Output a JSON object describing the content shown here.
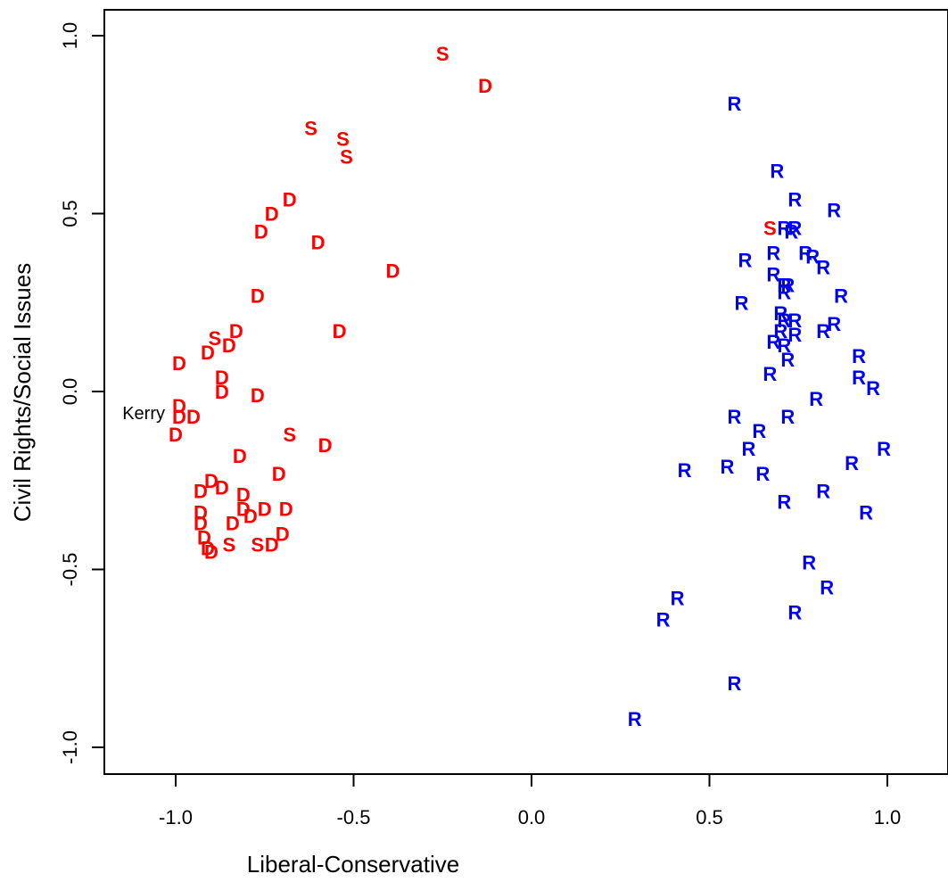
{
  "chart_data": {
    "type": "scatter",
    "title": "",
    "xlabel": "Liberal-Conservative",
    "ylabel": "Civil Rights/Social Issues",
    "xlim": [
      -1.2,
      1.17
    ],
    "ylim": [
      -1.08,
      1.08
    ],
    "x_ticks": [
      -1.0,
      -0.5,
      0.0,
      0.5,
      1.0
    ],
    "x_tick_labels": [
      "-1.0",
      "-0.5",
      "0.0",
      "0.5",
      "1.0"
    ],
    "y_ticks": [
      -1.0,
      -0.5,
      0.0,
      0.5,
      1.0
    ],
    "y_tick_labels": [
      "-1.0",
      "-0.5",
      "0.0",
      "0.5",
      "1.0"
    ],
    "grid": false,
    "legend": "none",
    "colors": {
      "D": "#ff0000",
      "S": "#ff0000",
      "R": "#0000ff"
    },
    "annotations": [
      {
        "text": "Kerry",
        "x": -1.0,
        "y": -0.06
      }
    ],
    "series": [
      {
        "symbol": "S",
        "color": "#ff0000",
        "points": [
          [
            -0.25,
            0.95
          ],
          [
            -0.62,
            0.74
          ],
          [
            -0.53,
            0.71
          ],
          [
            -0.52,
            0.66
          ],
          [
            -0.68,
            -0.12
          ],
          [
            -0.89,
            0.15
          ],
          [
            -0.77,
            -0.43
          ],
          [
            -0.85,
            -0.43
          ],
          [
            0.67,
            0.46
          ]
        ]
      },
      {
        "symbol": "D",
        "color": "#ff0000",
        "points": [
          [
            -0.13,
            0.86
          ],
          [
            -0.68,
            0.54
          ],
          [
            -0.73,
            0.5
          ],
          [
            -0.76,
            0.45
          ],
          [
            -0.6,
            0.42
          ],
          [
            -0.39,
            0.34
          ],
          [
            -0.77,
            0.27
          ],
          [
            -0.54,
            0.17
          ],
          [
            -0.83,
            0.17
          ],
          [
            -0.85,
            0.13
          ],
          [
            -0.91,
            0.11
          ],
          [
            -0.99,
            0.08
          ],
          [
            -0.87,
            0.04
          ],
          [
            -0.87,
            0.0
          ],
          [
            -0.77,
            -0.01
          ],
          [
            -0.99,
            -0.04
          ],
          [
            -0.99,
            -0.07
          ],
          [
            -0.95,
            -0.07
          ],
          [
            -1.0,
            -0.12
          ],
          [
            -0.58,
            -0.15
          ],
          [
            -0.82,
            -0.18
          ],
          [
            -0.71,
            -0.23
          ],
          [
            -0.9,
            -0.25
          ],
          [
            -0.93,
            -0.28
          ],
          [
            -0.87,
            -0.27
          ],
          [
            -0.81,
            -0.29
          ],
          [
            -0.93,
            -0.34
          ],
          [
            -0.81,
            -0.33
          ],
          [
            -0.75,
            -0.33
          ],
          [
            -0.69,
            -0.33
          ],
          [
            -0.79,
            -0.35
          ],
          [
            -0.84,
            -0.37
          ],
          [
            -0.93,
            -0.37
          ],
          [
            -0.7,
            -0.4
          ],
          [
            -0.92,
            -0.41
          ],
          [
            -0.91,
            -0.44
          ],
          [
            -0.9,
            -0.45
          ],
          [
            -0.73,
            -0.43
          ]
        ]
      },
      {
        "symbol": "R",
        "color": "#0000ff",
        "points": [
          [
            0.57,
            0.81
          ],
          [
            0.69,
            0.62
          ],
          [
            0.74,
            0.54
          ],
          [
            0.85,
            0.51
          ],
          [
            0.71,
            0.46
          ],
          [
            0.74,
            0.46
          ],
          [
            0.73,
            0.45
          ],
          [
            0.68,
            0.39
          ],
          [
            0.77,
            0.39
          ],
          [
            0.79,
            0.38
          ],
          [
            0.6,
            0.37
          ],
          [
            0.82,
            0.35
          ],
          [
            0.68,
            0.33
          ],
          [
            0.71,
            0.3
          ],
          [
            0.72,
            0.3
          ],
          [
            0.71,
            0.28
          ],
          [
            0.87,
            0.27
          ],
          [
            0.59,
            0.25
          ],
          [
            0.7,
            0.22
          ],
          [
            0.71,
            0.2
          ],
          [
            0.74,
            0.2
          ],
          [
            0.85,
            0.19
          ],
          [
            0.7,
            0.17
          ],
          [
            0.74,
            0.16
          ],
          [
            0.82,
            0.17
          ],
          [
            0.68,
            0.14
          ],
          [
            0.71,
            0.13
          ],
          [
            0.72,
            0.09
          ],
          [
            0.92,
            0.1
          ],
          [
            0.67,
            0.05
          ],
          [
            0.92,
            0.04
          ],
          [
            0.96,
            0.01
          ],
          [
            0.8,
            -0.02
          ],
          [
            0.57,
            -0.07
          ],
          [
            0.72,
            -0.07
          ],
          [
            0.64,
            -0.11
          ],
          [
            0.61,
            -0.16
          ],
          [
            0.99,
            -0.16
          ],
          [
            0.9,
            -0.2
          ],
          [
            0.55,
            -0.21
          ],
          [
            0.43,
            -0.22
          ],
          [
            0.65,
            -0.23
          ],
          [
            0.82,
            -0.28
          ],
          [
            0.71,
            -0.31
          ],
          [
            0.94,
            -0.34
          ],
          [
            0.78,
            -0.48
          ],
          [
            0.83,
            -0.55
          ],
          [
            0.41,
            -0.58
          ],
          [
            0.74,
            -0.62
          ],
          [
            0.37,
            -0.64
          ],
          [
            0.57,
            -0.82
          ],
          [
            0.29,
            -0.92
          ]
        ]
      }
    ]
  }
}
